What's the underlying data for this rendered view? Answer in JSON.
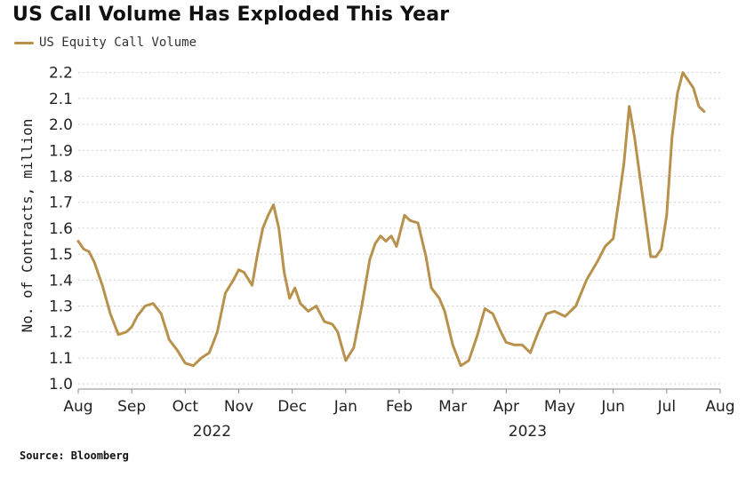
{
  "colors": {
    "line": "#b8924c",
    "grid": "#cfcfcf",
    "axis": "#888888"
  },
  "chart_data": {
    "type": "line",
    "title": "US Call Volume Has Exploded This Year",
    "source": "Source: Bloomberg",
    "ylabel": "No. of Contracts, million",
    "xlabel": "",
    "ylim": [
      0.98,
      2.24
    ],
    "yticks": [
      "1.0",
      "1.1",
      "1.2",
      "1.3",
      "1.4",
      "1.5",
      "1.6",
      "1.7",
      "1.8",
      "1.9",
      "2.0",
      "2.1",
      "2.2"
    ],
    "grid": true,
    "legend_position": "top-left",
    "x_month_labels": [
      "Aug",
      "Sep",
      "Oct",
      "Nov",
      "Dec",
      "Jan",
      "Feb",
      "Mar",
      "Apr",
      "May",
      "Jun",
      "Jul",
      "Aug"
    ],
    "x_year_labels": [
      {
        "label": "2022",
        "center_month_index": 2.5
      },
      {
        "label": "2023",
        "center_month_index": 8.4
      }
    ],
    "xlim_months": [
      0,
      12
    ],
    "series": [
      {
        "name": "US Equity Call Volume",
        "x_months_since_aug_2022": [
          0.0,
          0.1,
          0.2,
          0.3,
          0.45,
          0.6,
          0.75,
          0.9,
          1.0,
          1.1,
          1.25,
          1.4,
          1.55,
          1.7,
          1.85,
          2.0,
          2.15,
          2.3,
          2.45,
          2.6,
          2.75,
          2.9,
          3.0,
          3.1,
          3.25,
          3.35,
          3.45,
          3.55,
          3.65,
          3.75,
          3.85,
          3.95,
          4.05,
          4.15,
          4.3,
          4.45,
          4.6,
          4.75,
          4.85,
          5.0,
          5.15,
          5.3,
          5.45,
          5.55,
          5.65,
          5.75,
          5.85,
          5.95,
          6.1,
          6.2,
          6.35,
          6.5,
          6.6,
          6.75,
          6.85,
          7.0,
          7.15,
          7.3,
          7.45,
          7.6,
          7.75,
          7.9,
          8.0,
          8.15,
          8.3,
          8.45,
          8.6,
          8.75,
          8.9,
          9.1,
          9.3,
          9.5,
          9.7,
          9.85,
          10.0,
          10.1,
          10.2,
          10.3,
          10.4,
          10.55,
          10.7,
          10.8,
          10.9,
          11.0,
          11.1,
          11.2,
          11.3,
          11.4,
          11.5,
          11.6,
          11.7
        ],
        "y": [
          1.55,
          1.52,
          1.51,
          1.47,
          1.38,
          1.27,
          1.19,
          1.2,
          1.22,
          1.26,
          1.3,
          1.31,
          1.27,
          1.17,
          1.13,
          1.08,
          1.07,
          1.1,
          1.12,
          1.2,
          1.35,
          1.4,
          1.44,
          1.43,
          1.38,
          1.5,
          1.6,
          1.65,
          1.69,
          1.6,
          1.43,
          1.33,
          1.37,
          1.31,
          1.28,
          1.3,
          1.24,
          1.23,
          1.2,
          1.09,
          1.14,
          1.3,
          1.48,
          1.54,
          1.57,
          1.55,
          1.57,
          1.53,
          1.65,
          1.63,
          1.62,
          1.49,
          1.37,
          1.33,
          1.28,
          1.15,
          1.07,
          1.09,
          1.18,
          1.29,
          1.27,
          1.2,
          1.16,
          1.15,
          1.15,
          1.12,
          1.2,
          1.27,
          1.28,
          1.26,
          1.3,
          1.4,
          1.47,
          1.53,
          1.56,
          1.7,
          1.85,
          2.07,
          1.95,
          1.72,
          1.49,
          1.49,
          1.52,
          1.65,
          1.95,
          2.12,
          2.2,
          2.17,
          2.14,
          2.07,
          2.05
        ]
      }
    ]
  }
}
